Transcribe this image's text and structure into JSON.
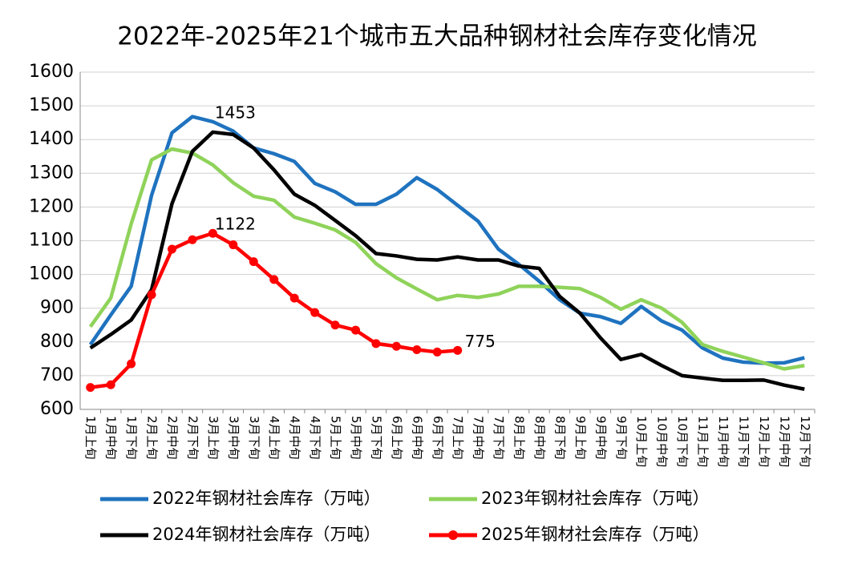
{
  "chart_data": {
    "type": "line",
    "title": "2022年-2025年21个城市五大品种钢材社会库存变化情况",
    "categories": [
      "1月上旬",
      "1月中旬",
      "1月下旬",
      "2月上旬",
      "2月中旬",
      "2月下旬",
      "3月上旬",
      "3月中旬",
      "3月下旬",
      "4月上旬",
      "4月中旬",
      "4月下旬",
      "5月上旬",
      "5月中旬",
      "5月下旬",
      "6月上旬",
      "6月中旬",
      "6月下旬",
      "7月上旬",
      "7月中旬",
      "7月下旬",
      "8月上旬",
      "8月中旬",
      "8月下旬",
      "9月上旬",
      "9月中旬",
      "9月下旬",
      "10月上旬",
      "10月中旬",
      "10月下旬",
      "11月上旬",
      "11月中旬",
      "11月下旬",
      "12月上旬",
      "12月中旬",
      "12月下旬"
    ],
    "series": [
      {
        "name": "2022年钢材社会库存（万吨）",
        "color": "#1f73bf",
        "marker": false,
        "values": [
          792,
          880,
          965,
          1235,
          1420,
          1468,
          1453,
          1425,
          1375,
          1358,
          1335,
          1270,
          1245,
          1208,
          1208,
          1238,
          1287,
          1252,
          1205,
          1158,
          1075,
          1030,
          980,
          925,
          885,
          875,
          855,
          905,
          862,
          835,
          782,
          752,
          740,
          737,
          738,
          753
        ]
      },
      {
        "name": "2023年钢材社会库存（万吨）",
        "color": "#8fd35a",
        "marker": false,
        "values": [
          845,
          930,
          1150,
          1340,
          1372,
          1360,
          1325,
          1272,
          1232,
          1220,
          1170,
          1152,
          1132,
          1095,
          1032,
          990,
          957,
          925,
          938,
          932,
          942,
          965,
          965,
          962,
          958,
          932,
          897,
          925,
          900,
          858,
          792,
          772,
          755,
          738,
          720,
          730
        ]
      },
      {
        "name": "2024年钢材社会库存（万吨）",
        "color": "#000000",
        "marker": false,
        "values": [
          782,
          822,
          865,
          955,
          1210,
          1365,
          1422,
          1415,
          1375,
          1310,
          1238,
          1205,
          1160,
          1115,
          1062,
          1055,
          1045,
          1043,
          1052,
          1043,
          1043,
          1025,
          1018,
          935,
          885,
          812,
          748,
          763,
          730,
          700,
          693,
          686,
          686,
          687,
          672,
          660
        ]
      },
      {
        "name": "2025年钢材社会库存（万吨）",
        "color": "#ff0000",
        "marker": true,
        "values": [
          665,
          673,
          735,
          940,
          1075,
          1103,
          1122,
          1088,
          1038,
          985,
          930,
          887,
          850,
          835,
          795,
          787,
          777,
          770,
          775,
          null,
          null,
          null,
          null,
          null,
          null,
          null,
          null,
          null,
          null,
          null,
          null,
          null,
          null,
          null,
          null,
          null
        ]
      }
    ],
    "annotations": [
      {
        "text": "1453",
        "category": "3月上旬",
        "value": 1453
      },
      {
        "text": "1122",
        "category": "3月上旬",
        "value": 1122
      },
      {
        "text": "775",
        "category": "7月上旬",
        "value": 775
      }
    ],
    "ylim": [
      600,
      1600
    ],
    "yticks": [
      600,
      700,
      800,
      900,
      1000,
      1100,
      1200,
      1300,
      1400,
      1500,
      1600
    ],
    "grid": true,
    "legend": "bottom"
  }
}
